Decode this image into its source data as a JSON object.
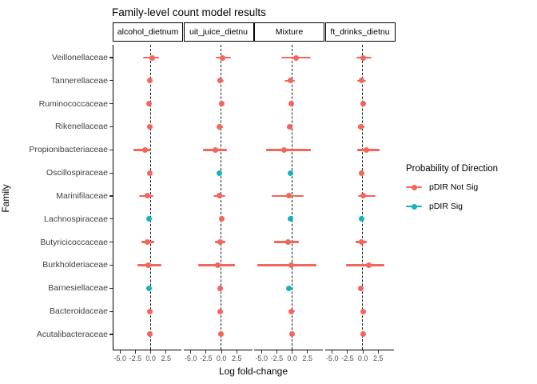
{
  "title": "Family-level count model results",
  "legend": {
    "title": "Probability of Direction",
    "items": [
      {
        "label": "pDIR Not Sig",
        "color": "#F4655C"
      },
      {
        "label": "pDIR Sig",
        "color": "#17B3BA"
      }
    ]
  },
  "chart_data": {
    "type": "scatter",
    "subtype": "faceted-pointrange-forest",
    "title": "Family-level count model results",
    "xlabel": "Log fold-change",
    "ylabel": "Family",
    "grid": false,
    "legend_position": "right",
    "x_ticks": [
      -5.0,
      -2.5,
      0.0,
      2.5
    ],
    "xlim": [
      -6.2,
      5.0
    ],
    "zero_reference_line": {
      "x": 0,
      "style": "dashed",
      "color": "#1a1a1a"
    },
    "categories": [
      "Veillonellaceae",
      "Tannerellaceae",
      "Ruminococcaceae",
      "Rikenellaceae",
      "Propionibacteriaceae",
      "Oscillospiraceae",
      "Marinifilaceae",
      "Lachnospiraceae",
      "Butyricicoccaceae",
      "Burkholderiaceae",
      "Barnesiellaceae",
      "Bacteroidaceae",
      "Acutalibacteraceae"
    ],
    "sig_color": "#17B3BA",
    "not_sig_color": "#F4655C",
    "facets": [
      {
        "strip_label": "alcohol_dietnum",
        "est": [
          0.2,
          -0.1,
          -0.3,
          -0.2,
          -0.9,
          -0.2,
          -0.5,
          -0.3,
          -0.6,
          -0.4,
          -0.3,
          -0.1,
          -0.2
        ],
        "lo": [
          -1.2,
          -0.5,
          -0.6,
          -0.6,
          -2.8,
          -0.6,
          -1.9,
          -0.5,
          -1.5,
          -2.2,
          -0.6,
          -0.4,
          -0.6
        ],
        "hi": [
          1.4,
          0.3,
          0.1,
          0.2,
          0.1,
          0.2,
          0.4,
          0.0,
          0.6,
          1.7,
          0.0,
          0.2,
          0.3
        ],
        "sig": [
          false,
          false,
          false,
          false,
          false,
          false,
          false,
          true,
          false,
          false,
          true,
          false,
          false
        ]
      },
      {
        "strip_label": "uit_juice_dietnu",
        "est": [
          0.2,
          -0.2,
          0.0,
          -0.3,
          -1.0,
          -0.3,
          -0.3,
          0.1,
          -0.2,
          -0.6,
          -0.2,
          -0.2,
          -0.1
        ],
        "lo": [
          -0.9,
          -0.7,
          -0.3,
          -0.6,
          -3.0,
          -0.5,
          -1.3,
          -0.2,
          -1.0,
          -3.8,
          -0.5,
          -0.4,
          -0.5
        ],
        "hi": [
          1.6,
          0.4,
          0.3,
          0.2,
          0.9,
          0.1,
          0.7,
          0.3,
          0.7,
          2.2,
          0.1,
          0.1,
          0.4
        ],
        "sig": [
          false,
          false,
          false,
          false,
          false,
          true,
          false,
          false,
          false,
          false,
          false,
          false,
          false
        ]
      },
      {
        "strip_label": "Mixture",
        "est": [
          0.6,
          -0.3,
          -0.2,
          -0.4,
          -1.3,
          -0.3,
          -0.5,
          -0.3,
          -0.7,
          -0.2,
          -0.5,
          -0.1,
          0.0
        ],
        "lo": [
          -1.8,
          -1.3,
          -0.5,
          -0.8,
          -4.2,
          -0.6,
          -3.4,
          -0.6,
          -2.9,
          -5.7,
          -0.8,
          -0.5,
          -0.5
        ],
        "hi": [
          3.0,
          0.5,
          0.2,
          0.1,
          3.0,
          0.1,
          1.9,
          0.0,
          1.1,
          4.0,
          -0.1,
          0.4,
          0.5
        ],
        "sig": [
          false,
          false,
          false,
          false,
          false,
          true,
          false,
          true,
          false,
          false,
          true,
          false,
          false
        ]
      },
      {
        "strip_label": "ft_drinks_dietnu",
        "est": [
          0.1,
          -0.2,
          0.0,
          -0.3,
          0.6,
          -0.2,
          0.1,
          -0.2,
          -0.2,
          0.9,
          -0.3,
          0.0,
          0.1
        ],
        "lo": [
          -1.1,
          -0.9,
          -0.4,
          -0.8,
          -0.9,
          -0.6,
          -0.8,
          -0.4,
          -1.2,
          -2.7,
          -0.6,
          -0.3,
          -0.4
        ],
        "hi": [
          1.4,
          0.5,
          0.3,
          0.3,
          2.7,
          0.3,
          2.1,
          0.1,
          0.6,
          3.5,
          0.0,
          0.3,
          0.5
        ],
        "sig": [
          false,
          false,
          false,
          false,
          false,
          false,
          false,
          true,
          false,
          false,
          false,
          false,
          false
        ]
      }
    ]
  }
}
